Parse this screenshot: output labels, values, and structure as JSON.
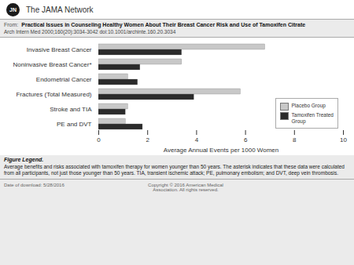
{
  "chart_data": {
    "type": "bar",
    "orientation": "horizontal",
    "title": "Practical Issues in Counseling Healthy Women About Their Breast Cancer Risk and Use of Tamoxifen\nCitrate",
    "subtitle": "Arch Intern Med  2000;160(20):3034-3042  doi:10.1001/archinte.160.20.3034",
    "categories": [
      "Invasive Breast Cancer",
      "Noninvasive Breast Cancer*",
      "Endometrial Cancer",
      "Fractures (Total Measured)",
      "Stroke and TIA",
      "PE and DVT"
    ],
    "series": [
      {
        "name": "Placebo Group",
        "color": "#c8c8c8",
        "values": [
          6.8,
          3.4,
          1.2,
          5.8,
          1.2,
          1.1
        ]
      },
      {
        "name": "Tamoxifen Treated\nGroup",
        "color": "#2b2b2b",
        "values": [
          3.4,
          1.7,
          1.6,
          3.9,
          1.1,
          1.8
        ]
      }
    ],
    "xlabel": "Average Annual Events per 1000 Women",
    "xlim": [
      0,
      10
    ],
    "xticks": [
      0,
      2,
      4,
      6,
      8,
      10
    ],
    "grid": false,
    "legend": "lower right",
    "annotations": [
      "JN",
      "The JAMA Network",
      "From:",
      "Figure Legend.",
      "Average benefits and risks associated with tamoxifen therapy for women younger than 50 years. The asterisk indicates that these\ndata were calculated from all participants, not just those younger than 50 years. TIA, transient ischemic attack; PE, pulmonary\nembolism; and DVT, deep vein thrombosis.",
      "Date of download:  5/28/2016",
      "Copyright © 2016 American Medical\nAssociation. All rights reserved."
    ]
  }
}
